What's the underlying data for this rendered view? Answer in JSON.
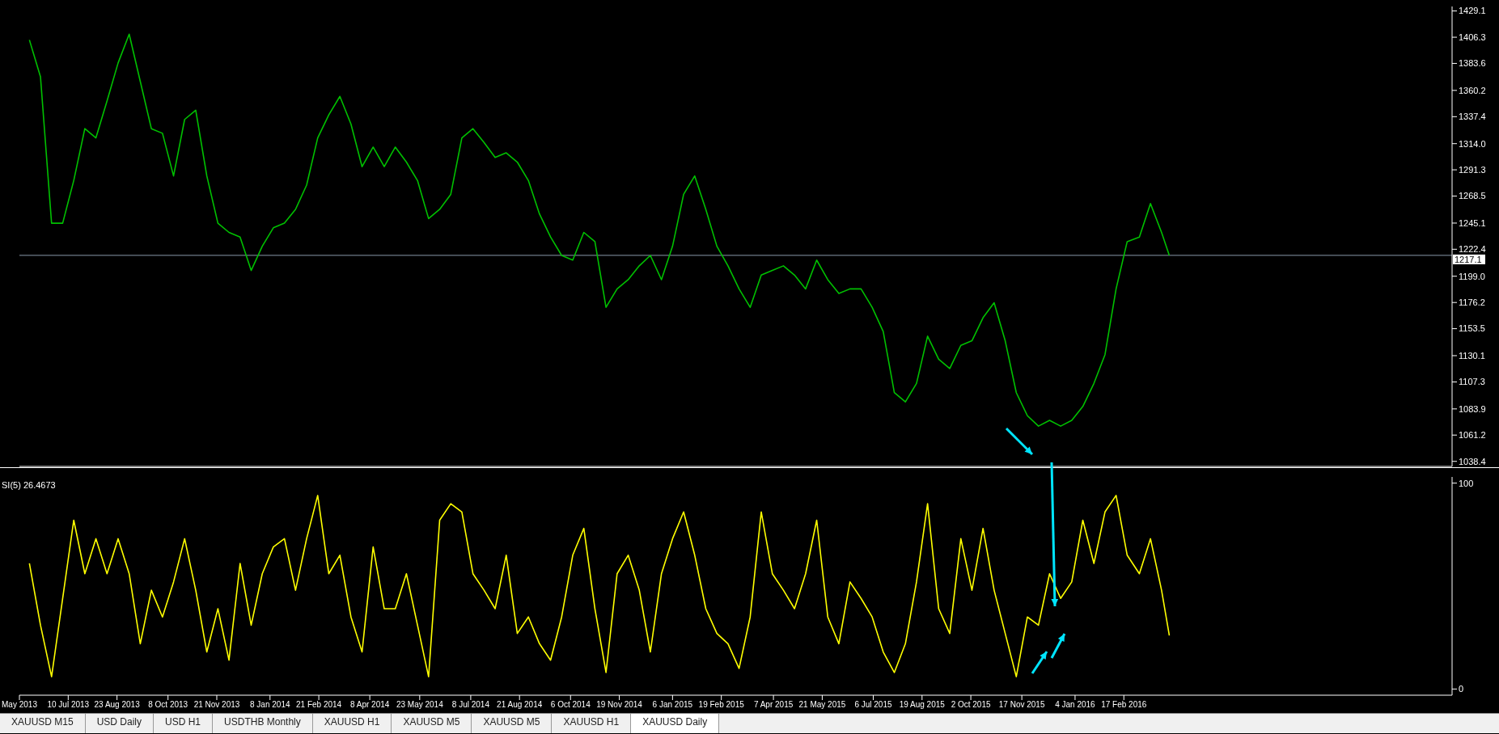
{
  "chart_data": [
    {
      "type": "line",
      "x": [
        "2013-06-05",
        "2013-06-15",
        "2013-06-25",
        "2013-07-05",
        "2013-07-15",
        "2013-07-25",
        "2013-08-04",
        "2013-08-14",
        "2013-08-24",
        "2013-09-03",
        "2013-09-13",
        "2013-09-23",
        "2013-10-03",
        "2013-10-13",
        "2013-10-23",
        "2013-11-02",
        "2013-11-12",
        "2013-11-22",
        "2013-12-02",
        "2013-12-12",
        "2013-12-22",
        "2014-01-01",
        "2014-01-11",
        "2014-01-21",
        "2014-01-31",
        "2014-02-10",
        "2014-02-20",
        "2014-03-02",
        "2014-03-12",
        "2014-03-22",
        "2014-04-01",
        "2014-04-11",
        "2014-04-21",
        "2014-05-01",
        "2014-05-11",
        "2014-05-21",
        "2014-05-31",
        "2014-06-10",
        "2014-06-20",
        "2014-06-30",
        "2014-07-10",
        "2014-07-20",
        "2014-07-30",
        "2014-08-09",
        "2014-08-19",
        "2014-08-29",
        "2014-09-08",
        "2014-09-18",
        "2014-09-28",
        "2014-10-08",
        "2014-10-18",
        "2014-10-28",
        "2014-11-07",
        "2014-11-17",
        "2014-11-27",
        "2014-12-07",
        "2014-12-17",
        "2014-12-27",
        "2015-01-06",
        "2015-01-16",
        "2015-01-26",
        "2015-02-05",
        "2015-02-15",
        "2015-02-25",
        "2015-03-07",
        "2015-03-17",
        "2015-03-27",
        "2015-04-06",
        "2015-04-16",
        "2015-04-26",
        "2015-05-06",
        "2015-05-16",
        "2015-05-26",
        "2015-06-05",
        "2015-06-15",
        "2015-06-25",
        "2015-07-05",
        "2015-07-15",
        "2015-07-25",
        "2015-08-04",
        "2015-08-14",
        "2015-08-24",
        "2015-09-03",
        "2015-09-13",
        "2015-09-23",
        "2015-10-03",
        "2015-10-13",
        "2015-10-23",
        "2015-11-02",
        "2015-11-12",
        "2015-11-22",
        "2015-12-02",
        "2015-12-12",
        "2015-12-22",
        "2016-01-01",
        "2016-01-11",
        "2016-01-21",
        "2016-01-31",
        "2016-02-10",
        "2016-02-20",
        "2016-03-02",
        "2016-03-12",
        "2016-03-22",
        "2016-03-29"
      ],
      "series": [
        {
          "color": "#00c000",
          "values": [
            1404,
            1372,
            1245,
            1245,
            1282,
            1327,
            1319,
            1351,
            1384,
            1409,
            1368,
            1327,
            1323,
            1286,
            1335,
            1343,
            1286,
            1245,
            1237,
            1233,
            1204,
            1225,
            1241,
            1245,
            1257,
            1278,
            1319,
            1339,
            1355,
            1331,
            1294,
            1311,
            1294,
            1311,
            1298,
            1282,
            1249,
            1257,
            1270,
            1319,
            1327,
            1315,
            1302,
            1306,
            1298,
            1282,
            1253,
            1233,
            1217,
            1213,
            1237,
            1229,
            1172,
            1188,
            1196,
            1208,
            1217,
            1196,
            1225,
            1270,
            1286,
            1257,
            1225,
            1208,
            1188,
            1172,
            1200,
            1204,
            1208,
            1200,
            1188,
            1213,
            1196,
            1184,
            1188,
            1188,
            1172,
            1151,
            1098,
            1090,
            1106,
            1147,
            1127,
            1119,
            1139,
            1143,
            1163,
            1176,
            1143,
            1098,
            1078,
            1069,
            1074,
            1069,
            1074,
            1086,
            1106,
            1131,
            1188,
            1229,
            1233,
            1262,
            1237,
            1217
          ]
        }
      ],
      "xlim": [
        "2013-05-27",
        "2016-12-09"
      ],
      "ylim": [
        1034,
        1433
      ],
      "yticks": [
        1038.4,
        1061.2,
        1083.9,
        1107.3,
        1130.1,
        1153.5,
        1176.2,
        {
          "value": 1199,
          "label": "1199.0"
        },
        1222.4,
        1245.1,
        1268.5,
        1291.3,
        {
          "value": 1314,
          "label": "1314.0"
        },
        1337.4,
        1360.2,
        1383.6,
        1406.3,
        1429.1
      ],
      "tick_labels": "y",
      "ref_lines": [
        {
          "axis": "y",
          "value": 1217.1,
          "label": "1217.1",
          "color": "#8899aa"
        }
      ]
    },
    {
      "type": "line",
      "title": "SI(5) 26.4673",
      "x": [
        "2013-06-05",
        "2013-06-15",
        "2013-06-25",
        "2013-07-05",
        "2013-07-15",
        "2013-07-25",
        "2013-08-04",
        "2013-08-14",
        "2013-08-24",
        "2013-09-03",
        "2013-09-13",
        "2013-09-23",
        "2013-10-03",
        "2013-10-13",
        "2013-10-23",
        "2013-11-02",
        "2013-11-12",
        "2013-11-22",
        "2013-12-02",
        "2013-12-12",
        "2013-12-22",
        "2014-01-01",
        "2014-01-11",
        "2014-01-21",
        "2014-01-31",
        "2014-02-10",
        "2014-02-20",
        "2014-03-02",
        "2014-03-12",
        "2014-03-22",
        "2014-04-01",
        "2014-04-11",
        "2014-04-21",
        "2014-05-01",
        "2014-05-11",
        "2014-05-21",
        "2014-05-31",
        "2014-06-10",
        "2014-06-20",
        "2014-06-30",
        "2014-07-10",
        "2014-07-20",
        "2014-07-30",
        "2014-08-09",
        "2014-08-19",
        "2014-08-29",
        "2014-09-08",
        "2014-09-18",
        "2014-09-28",
        "2014-10-08",
        "2014-10-18",
        "2014-10-28",
        "2014-11-07",
        "2014-11-17",
        "2014-11-27",
        "2014-12-07",
        "2014-12-17",
        "2014-12-27",
        "2015-01-06",
        "2015-01-16",
        "2015-01-26",
        "2015-02-05",
        "2015-02-15",
        "2015-02-25",
        "2015-03-07",
        "2015-03-17",
        "2015-03-27",
        "2015-04-06",
        "2015-04-16",
        "2015-04-26",
        "2015-05-06",
        "2015-05-16",
        "2015-05-26",
        "2015-06-05",
        "2015-06-15",
        "2015-06-25",
        "2015-07-05",
        "2015-07-15",
        "2015-07-25",
        "2015-08-04",
        "2015-08-14",
        "2015-08-24",
        "2015-09-03",
        "2015-09-13",
        "2015-09-23",
        "2015-10-03",
        "2015-10-13",
        "2015-10-23",
        "2015-11-02",
        "2015-11-12",
        "2015-11-22",
        "2015-12-02",
        "2015-12-12",
        "2015-12-22",
        "2016-01-01",
        "2016-01-11",
        "2016-01-21",
        "2016-01-31",
        "2016-02-10",
        "2016-02-20",
        "2016-03-02",
        "2016-03-12",
        "2016-03-22",
        "2016-03-29"
      ],
      "series": [
        {
          "color": "#ffff00",
          "values": [
            61,
            31,
            6,
            44,
            82,
            56,
            73,
            56,
            73,
            56,
            22,
            48,
            35,
            52,
            73,
            48,
            18,
            39,
            14,
            61,
            31,
            56,
            69,
            73,
            48,
            73,
            94,
            56,
            65,
            35,
            18,
            69,
            39,
            39,
            56,
            31,
            6,
            82,
            90,
            86,
            56,
            48,
            39,
            65,
            27,
            35,
            22,
            14,
            35,
            65,
            78,
            39,
            8,
            56,
            65,
            48,
            18,
            56,
            73,
            86,
            65,
            39,
            27,
            22,
            10,
            35,
            86,
            56,
            48,
            39,
            56,
            82,
            35,
            22,
            52,
            44,
            35,
            18,
            8,
            22,
            52,
            90,
            39,
            27,
            73,
            48,
            78,
            48,
            27,
            6,
            35,
            31,
            56,
            44,
            52,
            82,
            61,
            86,
            94,
            65,
            56,
            73,
            48,
            26
          ]
        }
      ],
      "xlim": [
        "2013-05-27",
        "2016-12-09"
      ],
      "xticks": [
        {
          "value": "2013-05-27",
          "label": "May 2013"
        },
        {
          "value": "2013-07-10",
          "label": "10 Jul 2013"
        },
        {
          "value": "2013-08-23",
          "label": "23 Aug 2013"
        },
        {
          "value": "2013-10-08",
          "label": "8 Oct 2013"
        },
        {
          "value": "2013-11-21",
          "label": "21 Nov 2013"
        },
        {
          "value": "2014-01-08",
          "label": "8 Jan 2014"
        },
        {
          "value": "2014-02-21",
          "label": "21 Feb 2014"
        },
        {
          "value": "2014-04-08",
          "label": "8 Apr 2014"
        },
        {
          "value": "2014-05-23",
          "label": "23 May 2014"
        },
        {
          "value": "2014-07-08",
          "label": "8 Jul 2014"
        },
        {
          "value": "2014-08-21",
          "label": "21 Aug 2014"
        },
        {
          "value": "2014-10-06",
          "label": "6 Oct 2014"
        },
        {
          "value": "2014-11-19",
          "label": "19 Nov 2014"
        },
        {
          "value": "2015-01-06",
          "label": "6 Jan 2015"
        },
        {
          "value": "2015-02-19",
          "label": "19 Feb 2015"
        },
        {
          "value": "2015-04-07",
          "label": "7 Apr 2015"
        },
        {
          "value": "2015-05-21",
          "label": "21 May 2015"
        },
        {
          "value": "2015-07-06",
          "label": "6 Jul 2015"
        },
        {
          "value": "2015-08-19",
          "label": "19 Aug 2015"
        },
        {
          "value": "2015-10-02",
          "label": "2 Oct 2015"
        },
        {
          "value": "2015-11-17",
          "label": "17 Nov 2015"
        },
        {
          "value": "2016-01-04",
          "label": "4 Jan 2016"
        },
        {
          "value": "2016-02-17",
          "label": "17 Feb 2016"
        }
      ],
      "ylim": [
        -3,
        103
      ],
      "yticks": [
        0,
        100
      ],
      "annotations": [
        "XAUUSD M15",
        "USD Daily",
        "USD H1",
        "USDTHB Monthly",
        "XAUUSD H1",
        "XAUUSD M5",
        "XAUUSD M5",
        "XAUUSD H1",
        "XAUUSD Daily"
      ]
    }
  ]
}
